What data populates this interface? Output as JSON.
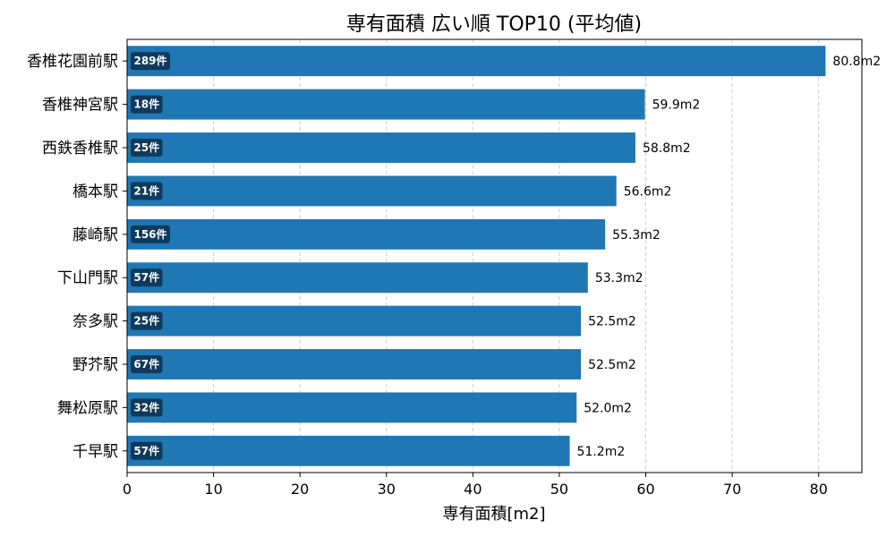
{
  "chart_data": {
    "type": "bar",
    "orientation": "horizontal",
    "title": "専有面積 広い順 TOP10 (平均値)",
    "xlabel": "専有面積[m2]",
    "ylabel": "",
    "xlim": [
      0,
      85
    ],
    "xticks": [
      0,
      10,
      20,
      30,
      40,
      50,
      60,
      70,
      80
    ],
    "grid": "x-dashed",
    "bar_color": "#1f77b4",
    "badge_color": "#0f3a5c",
    "categories": [
      "香椎花園前駅",
      "香椎神宮駅",
      "西鉄香椎駅",
      "橋本駅",
      "藤崎駅",
      "下山門駅",
      "奈多駅",
      "野芥駅",
      "舞松原駅",
      "千早駅"
    ],
    "values": [
      80.8,
      59.9,
      58.8,
      56.6,
      55.3,
      53.3,
      52.5,
      52.5,
      52.0,
      51.2
    ],
    "value_labels": [
      "80.8m2",
      "59.9m2",
      "58.8m2",
      "56.6m2",
      "55.3m2",
      "53.3m2",
      "52.5m2",
      "52.5m2",
      "52.0m2",
      "51.2m2"
    ],
    "counts": [
      "289件",
      "18件",
      "25件",
      "21件",
      "156件",
      "57件",
      "25件",
      "67件",
      "32件",
      "57件"
    ]
  }
}
